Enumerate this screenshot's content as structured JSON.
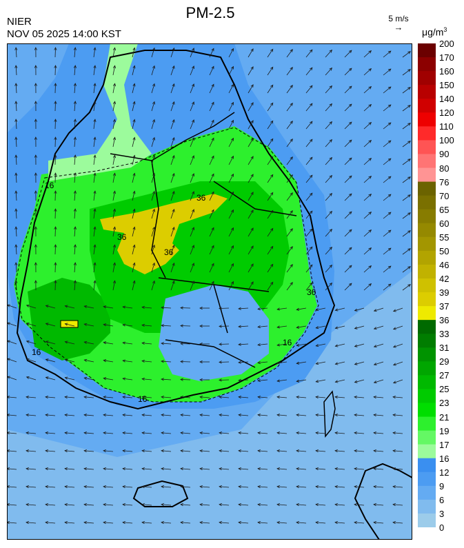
{
  "header": {
    "title": "PM-2.5",
    "agency": "NIER",
    "timestamp": "NOV 05 2025 14:00 KST",
    "wind_reference": "5 m/s",
    "unit_base": "μg/m",
    "unit_exp": "3"
  },
  "legend": {
    "labels": [
      "200",
      "170",
      "160",
      "150",
      "140",
      "120",
      "110",
      "100",
      "90",
      "80",
      "76",
      "70",
      "65",
      "60",
      "55",
      "50",
      "46",
      "42",
      "39",
      "37",
      "36",
      "33",
      "31",
      "29",
      "27",
      "25",
      "23",
      "21",
      "19",
      "17",
      "16",
      "12",
      "9",
      "6",
      "3",
      "0"
    ],
    "colors": [
      "#6b0000",
      "#8c0000",
      "#a00000",
      "#b80000",
      "#d00000",
      "#ee0000",
      "#ff2a2a",
      "#ff5454",
      "#ff7474",
      "#ff9494",
      "#6b6300",
      "#7a7000",
      "#877c00",
      "#958900",
      "#a39600",
      "#b2a400",
      "#c1b200",
      "#cfc100",
      "#dccd00",
      "#eeea00",
      "#006a00",
      "#007d00",
      "#009300",
      "#00a600",
      "#00b900",
      "#00cb00",
      "#00de00",
      "#2df02d",
      "#64f864",
      "#9cfb9c",
      "#3a8ff0",
      "#4c9cf2",
      "#64abf2",
      "#80bbee",
      "#9cccea"
    ]
  },
  "map": {
    "regions": [
      {
        "name": "sea",
        "pm_level": 4
      },
      {
        "name": "coastal-belt",
        "pm_level": 10
      },
      {
        "name": "western-plain",
        "pm_level": 22
      },
      {
        "name": "west-hotspot",
        "pm_level": 30
      },
      {
        "name": "central-inland",
        "pm_level": 25
      },
      {
        "name": "central-band",
        "pm_level": 37
      },
      {
        "name": "southeast-basin",
        "pm_level": 10
      }
    ],
    "contour_labels": [
      "16",
      "16",
      "16",
      "16",
      "36",
      "36",
      "36",
      "36"
    ]
  }
}
